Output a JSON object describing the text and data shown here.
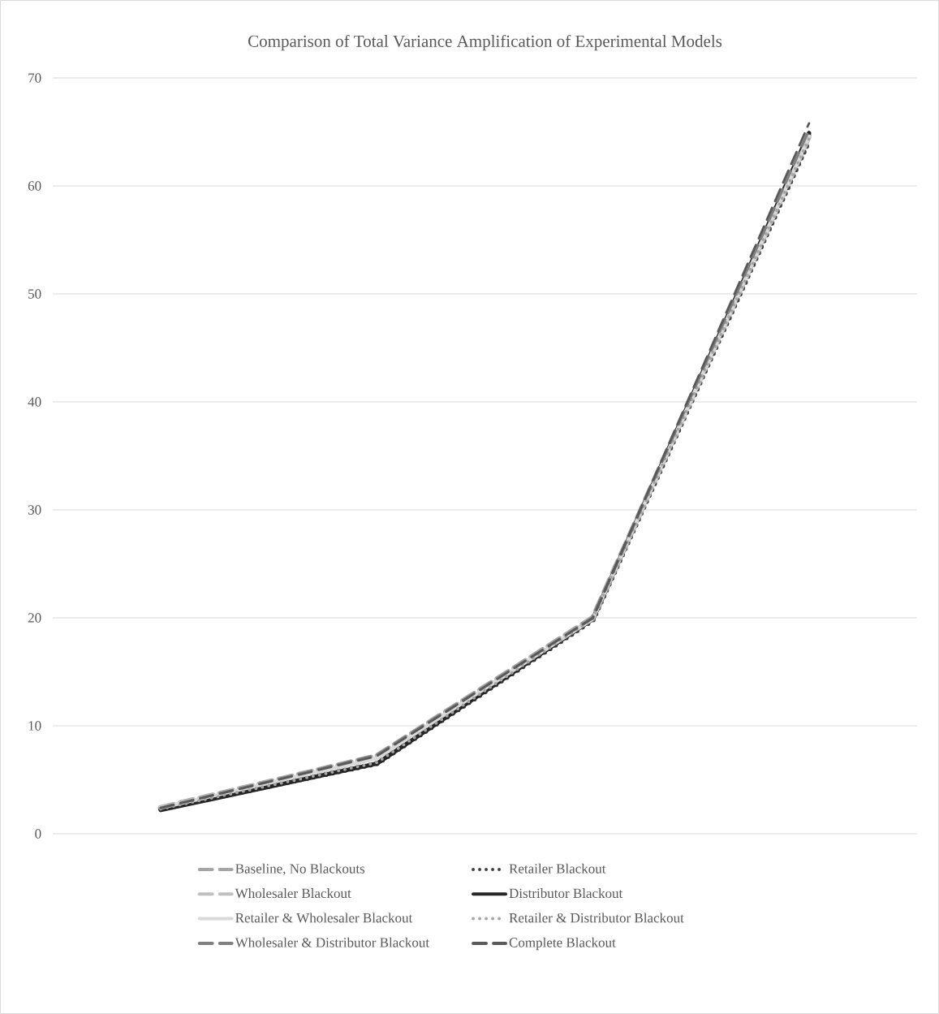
{
  "chart_data": {
    "type": "line",
    "title": "Comparison of Total Variance Amplification of Experimental Models",
    "categories": [
      null,
      null,
      null,
      null
    ],
    "series": [
      {
        "name": "Baseline, No Blackouts",
        "color": "#a5a5a5",
        "line_style": "dashed",
        "values": [
          2.4,
          7.2,
          20.0,
          64.8
        ]
      },
      {
        "name": "Retailer Blackout",
        "color": "#404040",
        "line_style": "dotted",
        "values": [
          2.3,
          6.5,
          19.8,
          64.2
        ]
      },
      {
        "name": "Wholesaler Blackout",
        "color": "#bfbfbf",
        "line_style": "dashed",
        "values": [
          2.4,
          7.2,
          19.9,
          64.5
        ]
      },
      {
        "name": "Distributor Blackout",
        "color": "#262626",
        "line_style": "solid",
        "values": [
          2.2,
          6.5,
          19.9,
          64.9
        ]
      },
      {
        "name": "Retailer & Wholesaler Blackout",
        "color": "#d9d9d9",
        "line_style": "solid",
        "values": [
          2.4,
          7.0,
          19.9,
          64.6
        ]
      },
      {
        "name": "Retailer & Distributor Blackout",
        "color": "#a5a5a5",
        "line_style": "dotted",
        "values": [
          2.3,
          6.6,
          19.9,
          64.4
        ]
      },
      {
        "name": "Wholesaler & Distributor Blackout",
        "color": "#7f7f7f",
        "line_style": "dashed",
        "values": [
          2.4,
          7.3,
          20.0,
          65.2
        ]
      },
      {
        "name": "Complete Blackout",
        "color": "#595959",
        "line_style": "dashed",
        "values": [
          2.4,
          7.2,
          20.0,
          65.8
        ]
      }
    ],
    "ylim": [
      0,
      70
    ],
    "yticks": [
      0,
      10,
      20,
      30,
      40,
      50,
      60,
      70
    ],
    "grid": "y",
    "legend": "bottom",
    "marker": "none"
  }
}
